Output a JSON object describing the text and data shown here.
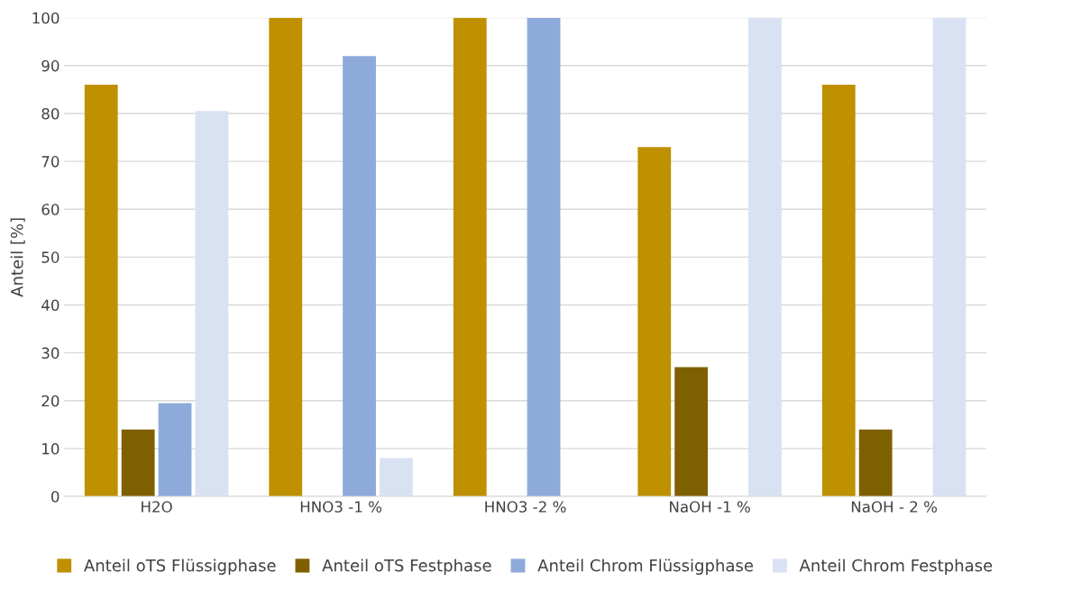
{
  "chart_data": {
    "type": "bar",
    "ylabel": "Anteil [%]",
    "categories": [
      "H2O",
      "HNO3 -1 %",
      "HNO3 -2 %",
      "NaOH -1 %",
      "NaOH - 2 %"
    ],
    "series": [
      {
        "name": "Anteil oTS Flüssigphase",
        "color": "#bf9000",
        "values": [
          86,
          100,
          100,
          73,
          86
        ]
      },
      {
        "name": "Anteil oTS Festphase",
        "color": "#7f6000",
        "values": [
          14,
          null,
          null,
          27,
          14
        ]
      },
      {
        "name": "Anteil Chrom Flüssigphase",
        "color": "#8eaadb",
        "values": [
          19.5,
          92,
          100,
          null,
          null
        ]
      },
      {
        "name": "Anteil Chrom Festphase",
        "color": "#d9e2f3",
        "values": [
          80.5,
          8,
          null,
          100,
          100
        ]
      }
    ],
    "ylim": [
      0,
      100
    ],
    "yticks": [
      0,
      10,
      20,
      30,
      40,
      50,
      60,
      70,
      80,
      90,
      100
    ],
    "grid": "y",
    "legend": "bottom"
  }
}
